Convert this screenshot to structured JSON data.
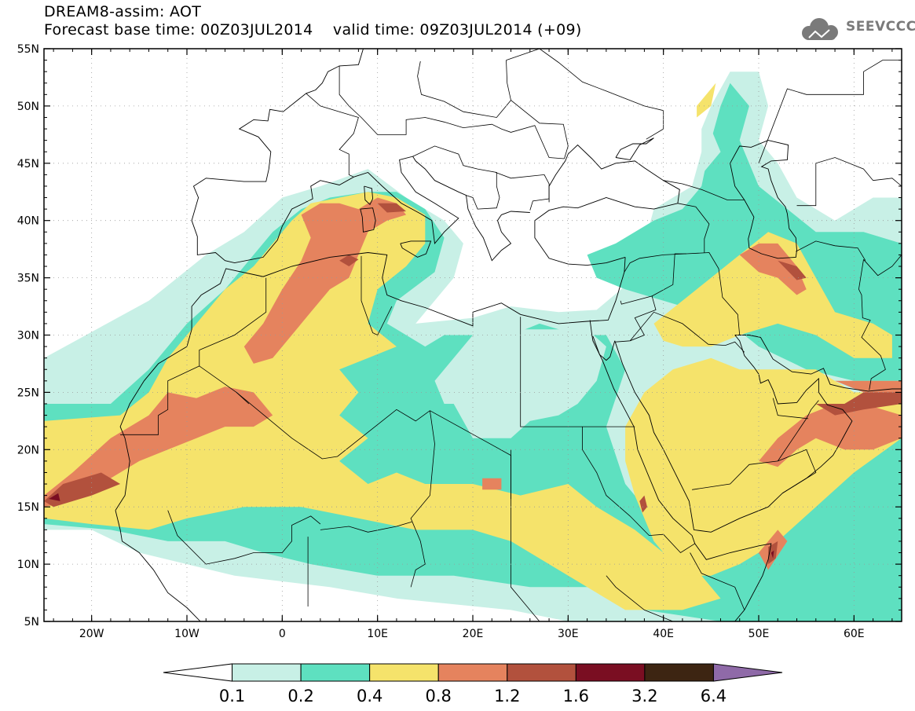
{
  "header": {
    "line1": "DREAM8-assim: AOT",
    "line2": "Forecast base time: 00Z03JUL2014    valid time: 09Z03JUL2014 (+09)",
    "logo_text": "SEEVCCC"
  },
  "map": {
    "lon_range": [
      -25,
      65
    ],
    "lat_range": [
      5,
      55
    ],
    "lat_ticks": [
      {
        "lat": 55,
        "label": "55N"
      },
      {
        "lat": 50,
        "label": "50N"
      },
      {
        "lat": 45,
        "label": "45N"
      },
      {
        "lat": 40,
        "label": "40N"
      },
      {
        "lat": 35,
        "label": "35N"
      },
      {
        "lat": 30,
        "label": "30N"
      },
      {
        "lat": 25,
        "label": "25N"
      },
      {
        "lat": 20,
        "label": "20N"
      },
      {
        "lat": 15,
        "label": "15N"
      },
      {
        "lat": 10,
        "label": "10N"
      },
      {
        "lat": 5,
        "label": "5N"
      }
    ],
    "lon_ticks": [
      {
        "lon": -20,
        "label": "20W"
      },
      {
        "lon": -10,
        "label": "10W"
      },
      {
        "lon": 0,
        "label": "0"
      },
      {
        "lon": 10,
        "label": "10E"
      },
      {
        "lon": 20,
        "label": "20E"
      },
      {
        "lon": 30,
        "label": "30E"
      },
      {
        "lon": 40,
        "label": "40E"
      },
      {
        "lon": 50,
        "label": "50E"
      },
      {
        "lon": 60,
        "label": "60E"
      }
    ],
    "colors": {
      "c01": "#c8f0e6",
      "c02": "#5ee0c0",
      "c04": "#f5e36b",
      "c08": "#e5835e",
      "c12": "#b2513d",
      "c16": "#7a0e22",
      "c32": "#3d2512",
      "c64": "#8f6aa8"
    }
  },
  "colorbar": {
    "levels": [
      "0.1",
      "0.2",
      "0.4",
      "0.8",
      "1.2",
      "1.6",
      "3.2",
      "6.4"
    ],
    "colors": [
      "#c8f0e6",
      "#5ee0c0",
      "#f5e36b",
      "#e5835e",
      "#b2513d",
      "#7a0e22",
      "#3d2512"
    ],
    "under_color": "#ffffff",
    "over_color": "#8f6aa8"
  }
}
